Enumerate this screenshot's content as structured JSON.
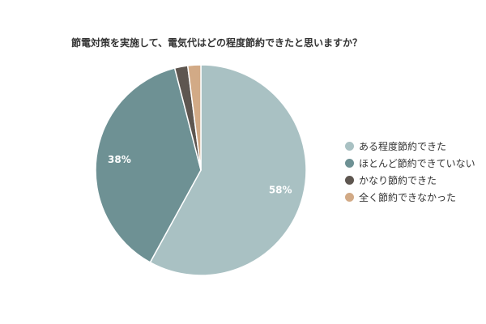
{
  "chart_data": {
    "type": "pie",
    "title": "節電対策を実施して、電気代はどの程度節約できたと思いますか？",
    "categories": [
      "ある程度節約できた",
      "ほとんど節約できていない",
      "かなり節約できた",
      "全く節約できなかった"
    ],
    "values": [
      58,
      38,
      2,
      2
    ],
    "data_labels": [
      "58%",
      "38%",
      "",
      ""
    ],
    "colors": [
      "#a9c1c3",
      "#6e9194",
      "#5e5650",
      "#d2aa86"
    ],
    "legend_position": "right",
    "start": "top",
    "direction": "clockwise"
  }
}
